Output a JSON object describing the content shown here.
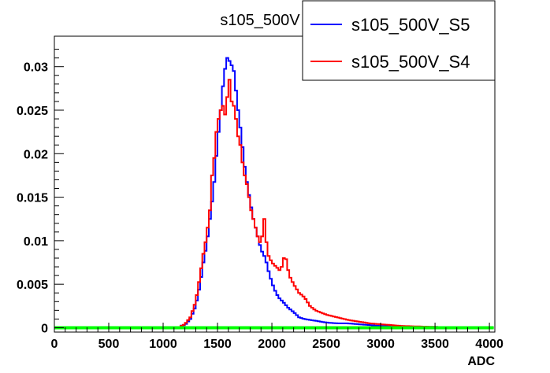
{
  "chart_data": {
    "type": "histogram",
    "title": "s105_500V",
    "xlabel": "ADC",
    "ylabel": "",
    "xlim": [
      0,
      4050
    ],
    "ylim": [
      -0.0005,
      0.0335
    ],
    "x_ticks": [
      0,
      500,
      1000,
      1500,
      2000,
      2500,
      3000,
      3500,
      4000
    ],
    "x_tick_labels": [
      "0",
      "500",
      "1000",
      "1500",
      "2000",
      "2500",
      "3000",
      "3500",
      "4000"
    ],
    "y_ticks": [
      0,
      0.005,
      0.01,
      0.015,
      0.02,
      0.025,
      0.03
    ],
    "y_tick_labels": [
      "0",
      "0.005",
      "0.01",
      "0.015",
      "0.02",
      "0.025",
      "0.03"
    ],
    "grid": false,
    "legend_position": "top-right",
    "bin_width": 20,
    "series": [
      {
        "name": "s105_500V_S5",
        "color": "#0000ff",
        "points": [
          [
            1150,
            0.0002
          ],
          [
            1200,
            0.0003
          ],
          [
            1250,
            0.001
          ],
          [
            1300,
            0.0025
          ],
          [
            1340,
            0.005
          ],
          [
            1370,
            0.0075
          ],
          [
            1400,
            0.0095
          ],
          [
            1430,
            0.0125
          ],
          [
            1460,
            0.0155
          ],
          [
            1480,
            0.018
          ],
          [
            1500,
            0.0215
          ],
          [
            1520,
            0.0235
          ],
          [
            1540,
            0.0265
          ],
          [
            1560,
            0.029
          ],
          [
            1580,
            0.0305
          ],
          [
            1600,
            0.0315
          ],
          [
            1620,
            0.0298
          ],
          [
            1640,
            0.0305
          ],
          [
            1660,
            0.0285
          ],
          [
            1680,
            0.026
          ],
          [
            1700,
            0.024
          ],
          [
            1720,
            0.022
          ],
          [
            1740,
            0.0195
          ],
          [
            1760,
            0.0175
          ],
          [
            1780,
            0.016
          ],
          [
            1800,
            0.0145
          ],
          [
            1830,
            0.0125
          ],
          [
            1860,
            0.011
          ],
          [
            1900,
            0.009
          ],
          [
            1940,
            0.008
          ],
          [
            1980,
            0.006
          ],
          [
            2020,
            0.0045
          ],
          [
            2060,
            0.0035
          ],
          [
            2100,
            0.003
          ],
          [
            2150,
            0.0023
          ],
          [
            2200,
            0.0018
          ],
          [
            2250,
            0.0012
          ],
          [
            2300,
            0.001
          ],
          [
            2400,
            0.0008
          ],
          [
            2500,
            0.0006
          ],
          [
            2600,
            0.0005
          ],
          [
            2700,
            0.0005
          ],
          [
            2800,
            0.0004
          ],
          [
            2900,
            0.0003
          ],
          [
            3000,
            0.0002
          ],
          [
            3200,
            0.0001
          ],
          [
            3500,
            0.0001
          ],
          [
            3800,
            0.0
          ]
        ]
      },
      {
        "name": "s105_500V_S4",
        "color": "#ff0000",
        "points": [
          [
            1150,
            0.0001
          ],
          [
            1200,
            0.0004
          ],
          [
            1250,
            0.0012
          ],
          [
            1300,
            0.003
          ],
          [
            1340,
            0.006
          ],
          [
            1370,
            0.0085
          ],
          [
            1400,
            0.0105
          ],
          [
            1430,
            0.0135
          ],
          [
            1450,
            0.0175
          ],
          [
            1470,
            0.0195
          ],
          [
            1490,
            0.0225
          ],
          [
            1510,
            0.024
          ],
          [
            1530,
            0.025
          ],
          [
            1550,
            0.0255
          ],
          [
            1570,
            0.0245
          ],
          [
            1590,
            0.0265
          ],
          [
            1610,
            0.0285
          ],
          [
            1630,
            0.026
          ],
          [
            1650,
            0.0255
          ],
          [
            1670,
            0.024
          ],
          [
            1690,
            0.022
          ],
          [
            1710,
            0.021
          ],
          [
            1730,
            0.019
          ],
          [
            1750,
            0.0175
          ],
          [
            1770,
            0.0165
          ],
          [
            1790,
            0.015
          ],
          [
            1810,
            0.0135
          ],
          [
            1840,
            0.012
          ],
          [
            1870,
            0.0105
          ],
          [
            1900,
            0.0095
          ],
          [
            1930,
            0.0125
          ],
          [
            1960,
            0.0085
          ],
          [
            2000,
            0.0075
          ],
          [
            2040,
            0.007
          ],
          [
            2080,
            0.0065
          ],
          [
            2120,
            0.0085
          ],
          [
            2160,
            0.006
          ],
          [
            2200,
            0.005
          ],
          [
            2250,
            0.004
          ],
          [
            2300,
            0.0035
          ],
          [
            2350,
            0.0025
          ],
          [
            2400,
            0.002
          ],
          [
            2500,
            0.0015
          ],
          [
            2600,
            0.0012
          ],
          [
            2700,
            0.0009
          ],
          [
            2800,
            0.0007
          ],
          [
            2900,
            0.0005
          ],
          [
            3000,
            0.0004
          ],
          [
            3200,
            0.0002
          ],
          [
            3500,
            0.0001
          ],
          [
            3800,
            0.0
          ]
        ]
      },
      {
        "name": "",
        "color": "#00ff00",
        "points": [
          [
            1150,
            0.0
          ],
          [
            1400,
            0.0
          ],
          [
            1800,
            0.0
          ],
          [
            2200,
            0.0
          ],
          [
            2600,
            0.0
          ],
          [
            3000,
            0.0
          ],
          [
            3400,
            0.0
          ],
          [
            3800,
            0.0
          ],
          [
            4040,
            0.0
          ]
        ]
      }
    ]
  }
}
